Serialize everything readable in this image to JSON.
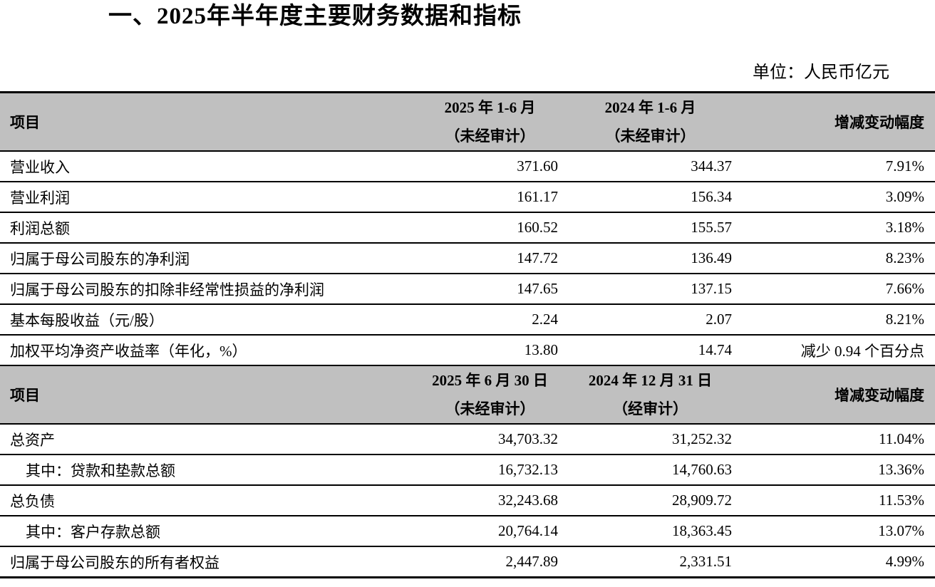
{
  "page": {
    "title": "一、2025年半年度主要财务数据和指标",
    "unit_label": "单位：人民币亿元"
  },
  "colors": {
    "header_bg": "#c0c0c0",
    "border": "#000000",
    "text": "#000000"
  },
  "sections": [
    {
      "header": {
        "item": "项目",
        "col_a": [
          "2025 年 1-6 月",
          "（未经审计）"
        ],
        "col_b": [
          "2024 年 1-6 月",
          "（未经审计）"
        ],
        "change": "增减变动幅度"
      },
      "rows": [
        {
          "item": "营业收入",
          "a": "371.60",
          "b": "344.37",
          "change": "7.91%"
        },
        {
          "item": "营业利润",
          "a": "161.17",
          "b": "156.34",
          "change": "3.09%"
        },
        {
          "item": "利润总额",
          "a": "160.52",
          "b": "155.57",
          "change": "3.18%"
        },
        {
          "item": "归属于母公司股东的净利润",
          "a": "147.72",
          "b": "136.49",
          "change": "8.23%"
        },
        {
          "item": "归属于母公司股东的扣除非经常性损益的净利润",
          "a": "147.65",
          "b": "137.15",
          "change": "7.66%"
        },
        {
          "item": "基本每股收益（元/股）",
          "a": "2.24",
          "b": "2.07",
          "change": "8.21%"
        },
        {
          "item": "加权平均净资产收益率（年化，%）",
          "a": "13.80",
          "b": "14.74",
          "change": "减少 0.94 个百分点"
        }
      ]
    },
    {
      "header": {
        "item": "项目",
        "col_a": [
          "2025 年 6 月 30 日",
          "（未经审计）"
        ],
        "col_b": [
          "2024 年 12 月 31 日",
          "（经审计）"
        ],
        "change": "增减变动幅度"
      },
      "rows": [
        {
          "item": "总资产",
          "a": "34,703.32",
          "b": "31,252.32",
          "change": "11.04%"
        },
        {
          "item": "其中：贷款和垫款总额",
          "a": "16,732.13",
          "b": "14,760.63",
          "change": "13.36%"
        },
        {
          "item": "总负债",
          "a": "32,243.68",
          "b": "28,909.72",
          "change": "11.53%"
        },
        {
          "item": "其中：客户存款总额",
          "a": "20,764.14",
          "b": "18,363.45",
          "change": "13.07%"
        },
        {
          "item": "归属于母公司股东的所有者权益",
          "a": "2,447.89",
          "b": "2,331.51",
          "change": "4.99%"
        }
      ]
    }
  ]
}
